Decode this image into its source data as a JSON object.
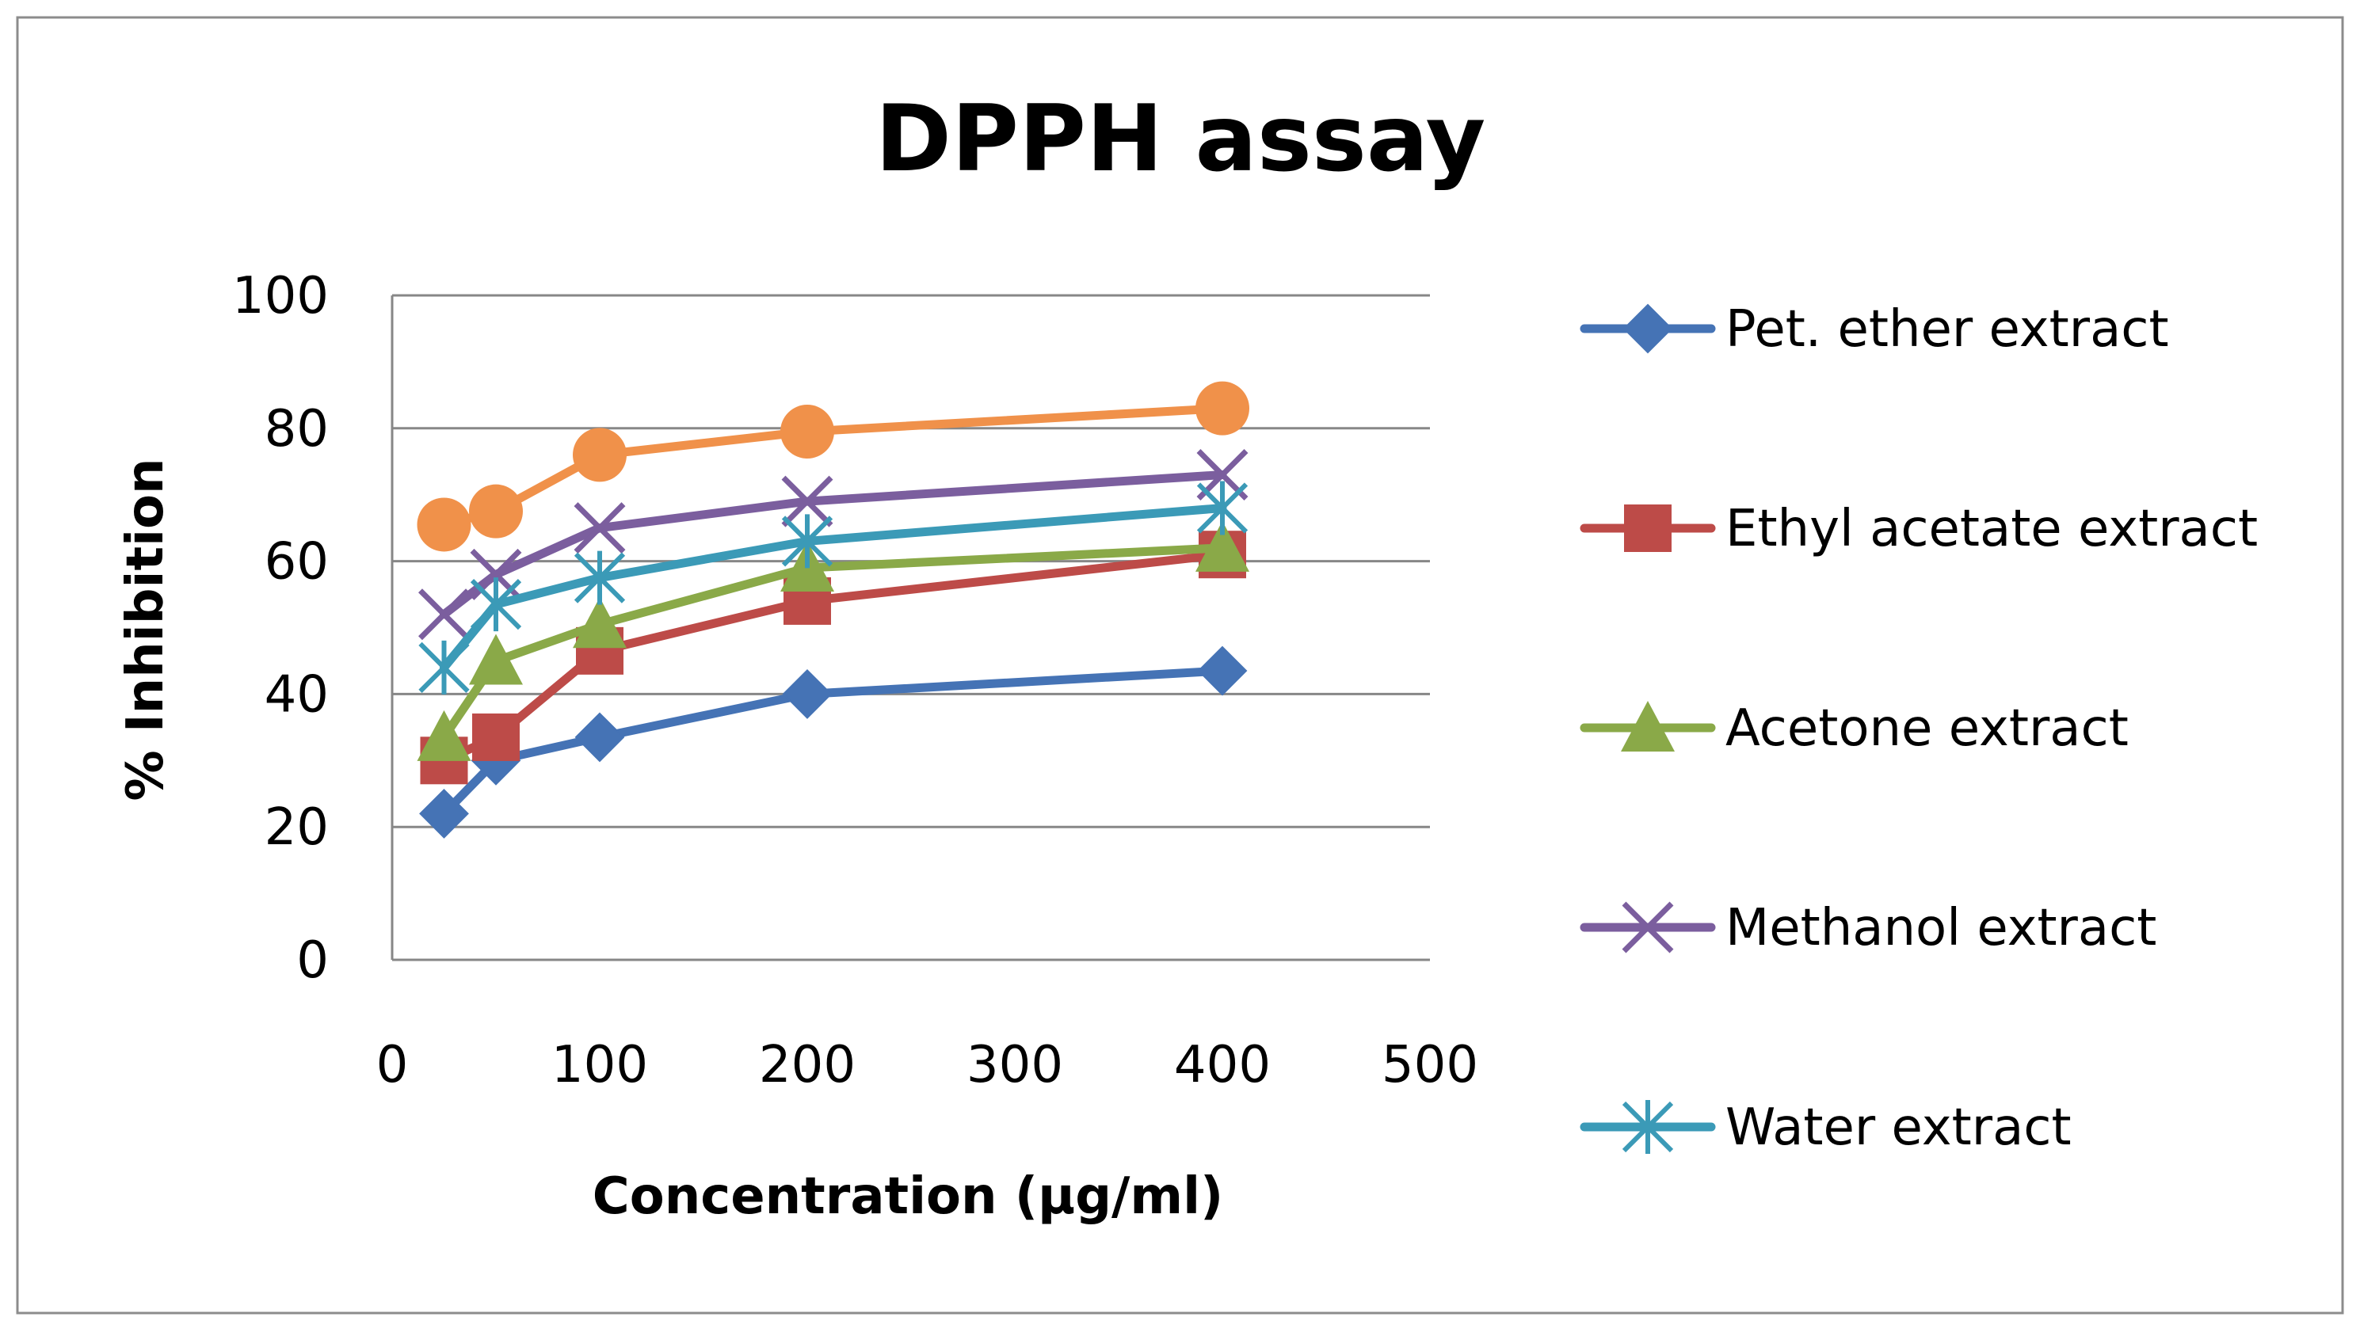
{
  "chart_data": {
    "type": "line",
    "title": "DPPH assay",
    "xlabel": "Concentration (µg/ml)",
    "ylabel": "% Inhibition",
    "xlim": [
      0,
      500
    ],
    "ylim": [
      0,
      100
    ],
    "x_ticks": [
      "0",
      "100",
      "200",
      "300",
      "400",
      "500"
    ],
    "y_ticks": [
      "0",
      "20",
      "40",
      "60",
      "80",
      "100"
    ],
    "grid": "horizontal",
    "legend_position": "right",
    "x": [
      25,
      50,
      100,
      200,
      400
    ],
    "series": [
      {
        "name": "Pet. ether extract",
        "values": [
          22,
          30,
          33.5,
          40,
          43.5
        ],
        "color": "#4573b5",
        "marker": "diamond"
      },
      {
        "name": "Ethyl acetate extract",
        "values": [
          30,
          33.5,
          46.5,
          54,
          61
        ],
        "color": "#bd4b48",
        "marker": "square"
      },
      {
        "name": "Acetone extract",
        "values": [
          33.5,
          45,
          50.5,
          59,
          62
        ],
        "color": "#8aa948",
        "marker": "triangle"
      },
      {
        "name": "Methanol extract",
        "values": [
          52,
          58,
          65,
          69,
          73
        ],
        "color": "#7b5e9e",
        "marker": "x"
      },
      {
        "name": "Water extract",
        "values": [
          44,
          53.5,
          57.5,
          63,
          68
        ],
        "color": "#3b9ab7",
        "marker": "star"
      },
      {
        "name": "",
        "values": [
          65.5,
          67.5,
          76,
          79.5,
          83
        ],
        "color": "#f0914a",
        "marker": "circle"
      }
    ]
  }
}
